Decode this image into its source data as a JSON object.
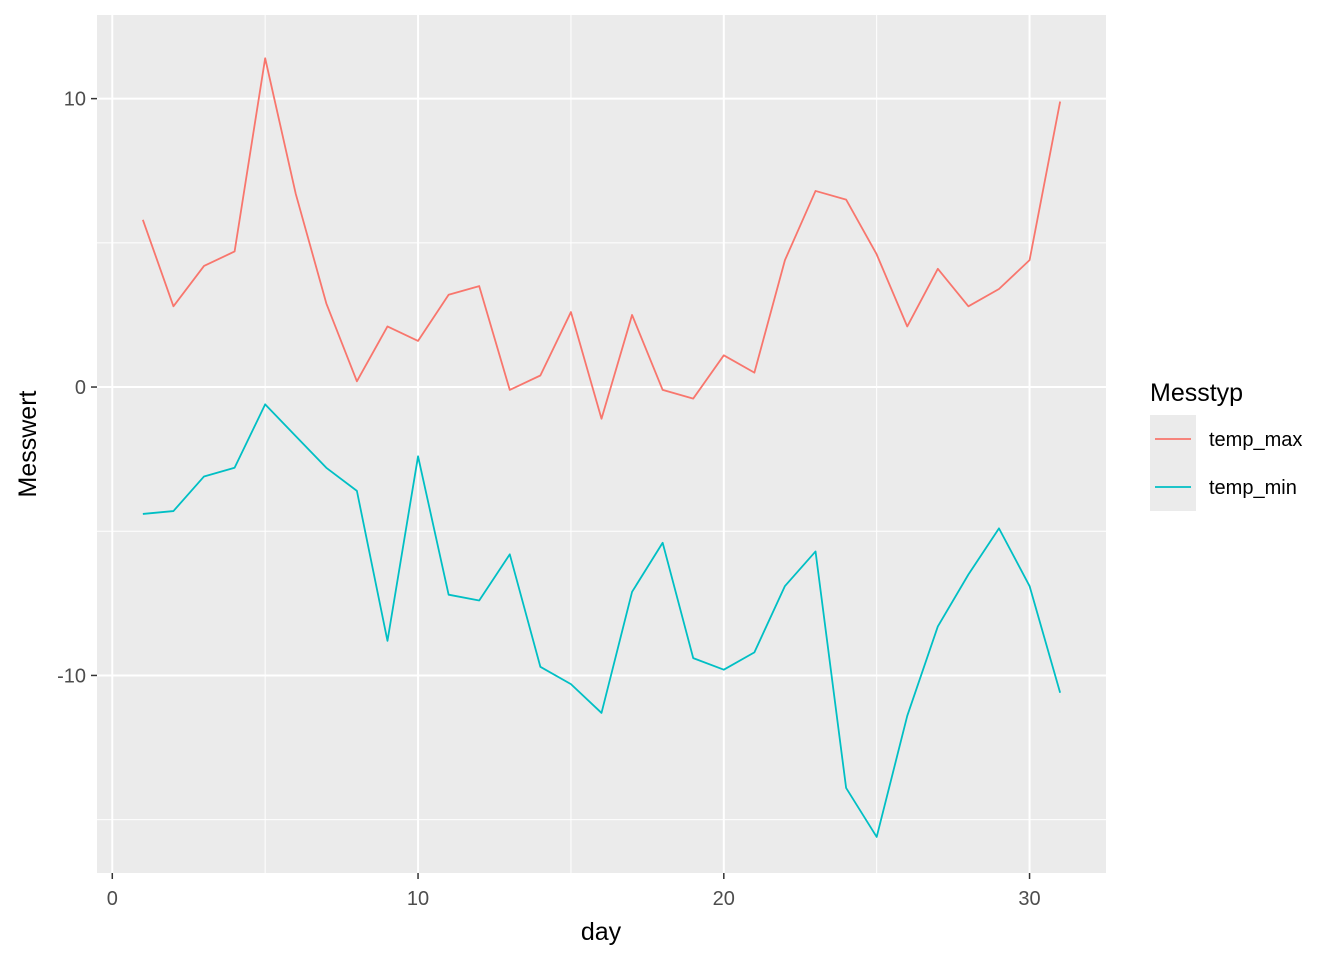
{
  "chart_data": {
    "type": "line",
    "title": "",
    "xlabel": "day",
    "ylabel": "Messwert",
    "xlim": [
      0,
      31
    ],
    "ylim": [
      -16,
      12
    ],
    "x_ticks": [
      0,
      10,
      20,
      30
    ],
    "y_ticks": [
      -10,
      0,
      10
    ],
    "grid": true,
    "legend": {
      "title": "Messtyp",
      "position": "right"
    },
    "x": [
      1,
      2,
      3,
      4,
      5,
      6,
      7,
      8,
      9,
      10,
      11,
      12,
      13,
      14,
      15,
      16,
      17,
      18,
      19,
      20,
      21,
      22,
      23,
      24,
      25,
      26,
      27,
      28,
      29,
      30,
      31
    ],
    "series": [
      {
        "name": "temp_max",
        "color": "#F8766D",
        "values": [
          5.8,
          2.8,
          4.2,
          4.7,
          11.4,
          6.7,
          2.9,
          0.2,
          2.1,
          1.6,
          3.2,
          3.5,
          -0.1,
          0.4,
          2.6,
          -1.1,
          2.5,
          -0.1,
          -0.4,
          1.1,
          0.5,
          4.4,
          6.8,
          6.5,
          4.6,
          2.1,
          4.1,
          2.8,
          3.4,
          4.4,
          9.9
        ]
      },
      {
        "name": "temp_min",
        "color": "#00BFC4",
        "values": [
          -4.4,
          -4.3,
          -3.1,
          -2.8,
          -0.6,
          -1.7,
          -2.8,
          -3.6,
          -8.8,
          -2.4,
          -7.2,
          -7.4,
          -5.8,
          -9.7,
          -10.3,
          -11.3,
          -7.1,
          -5.4,
          -9.4,
          -9.8,
          -9.2,
          -6.9,
          -5.7,
          -13.9,
          -15.6,
          -11.4,
          -8.3,
          -6.5,
          -4.9,
          -6.9,
          -10.6
        ]
      }
    ]
  }
}
